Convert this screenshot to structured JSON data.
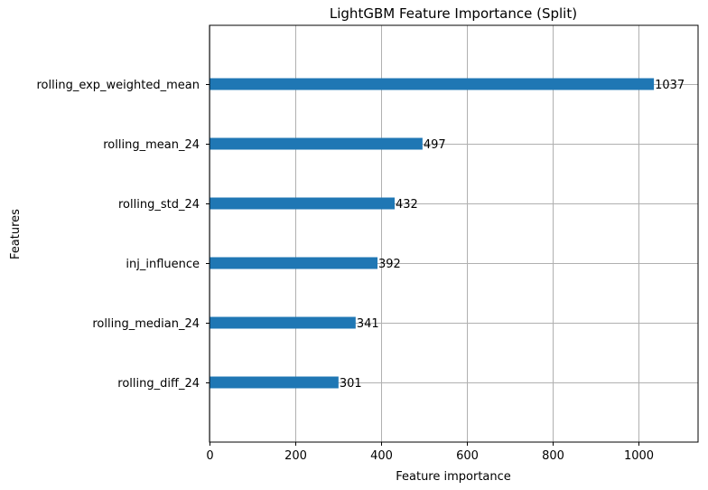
{
  "chart_data": {
    "type": "bar",
    "orientation": "horizontal",
    "title": "LightGBM Feature Importance (Split)",
    "xlabel": "Feature importance",
    "ylabel": "Features",
    "categories": [
      "rolling_exp_weighted_mean",
      "rolling_mean_24",
      "rolling_std_24",
      "inj_influence",
      "rolling_median_24",
      "rolling_diff_24"
    ],
    "values": [
      1037,
      497,
      432,
      392,
      341,
      301
    ],
    "data_labels": [
      "1037",
      "497",
      "432",
      "392",
      "341",
      "301"
    ],
    "xlim": [
      0,
      1140
    ],
    "xticks": [
      0,
      200,
      400,
      600,
      800,
      1000
    ],
    "xtick_labels": [
      "0",
      "200",
      "400",
      "600",
      "800",
      "1000"
    ],
    "grid": true,
    "bar_color": "#1f77b4"
  }
}
